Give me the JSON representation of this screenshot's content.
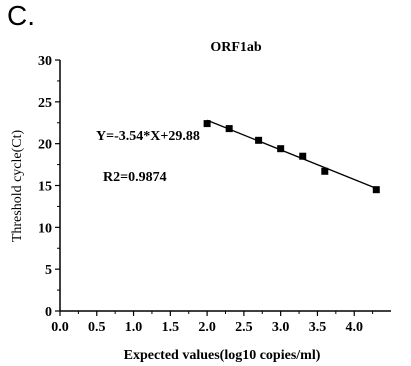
{
  "panel_label": "C.",
  "chart_data": {
    "type": "scatter",
    "title": "ORF1ab",
    "xlabel": "Expected values(log10 copies/ml)",
    "ylabel": "Threshold cycle(Ct)",
    "xlim": [
      0,
      4.5
    ],
    "ylim": [
      0,
      30
    ],
    "x_ticks": [
      "0.0",
      "0.5",
      "1.0",
      "1.5",
      "2.0",
      "2.5",
      "3.0",
      "3.5",
      "4.0"
    ],
    "y_ticks": [
      "0",
      "5",
      "10",
      "15",
      "20",
      "25",
      "30"
    ],
    "grid": false,
    "series": [
      {
        "points": [
          {
            "x": 2.0,
            "y": 22.4
          },
          {
            "x": 2.3,
            "y": 21.8
          },
          {
            "x": 2.7,
            "y": 20.4
          },
          {
            "x": 3.0,
            "y": 19.4
          },
          {
            "x": 3.3,
            "y": 18.5
          },
          {
            "x": 3.6,
            "y": 16.7
          },
          {
            "x": 4.3,
            "y": 14.5
          }
        ]
      }
    ],
    "fit_line": {
      "slope": -3.54,
      "intercept": 29.88,
      "x_range": [
        2.0,
        4.3
      ]
    },
    "annotations": [
      "Y=-3.54*X+29.88",
      "R2=0.9874"
    ]
  }
}
